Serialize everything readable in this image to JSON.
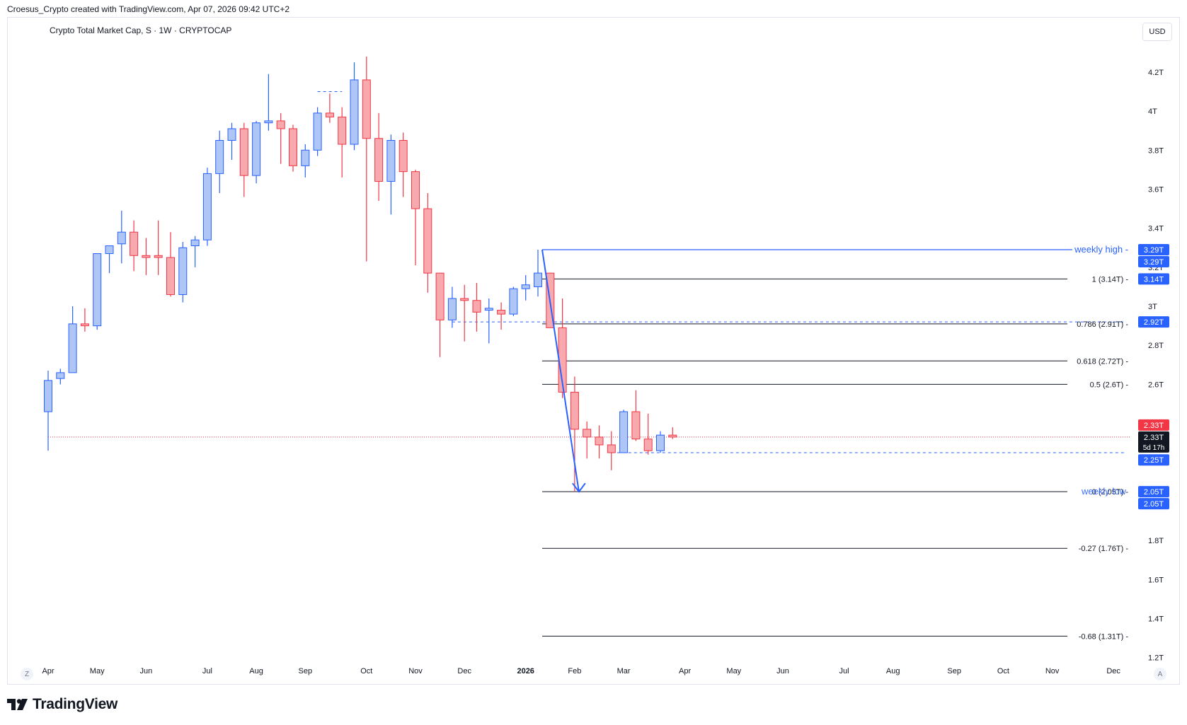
{
  "header": {
    "caption": "Croesus_Crypto created with TradingView.com, Apr 07, 2026 09:42 UTC+2",
    "symbol_title": "Crypto Total Market Cap, S · 1W · CRYPTOCAP",
    "currency": "USD"
  },
  "footer": {
    "logo_text": "TradingView",
    "zoom_label": "Z",
    "scale_label": "A"
  },
  "colors": {
    "up": "#aec6f5",
    "up_border": "#2962ff",
    "down": "#f7a9ad",
    "down_border": "#f23645",
    "fib_line": "#131722",
    "accent": "#2962ff",
    "last_price": "#f23645"
  },
  "chart_data": {
    "type": "candlestick",
    "timeframe": "1W",
    "ylim": [
      1.17,
      4.37
    ],
    "yticks": [
      {
        "value": 4.2,
        "label": "4.2T"
      },
      {
        "value": 4.0,
        "label": "4T"
      },
      {
        "value": 3.8,
        "label": "3.8T"
      },
      {
        "value": 3.6,
        "label": "3.6T"
      },
      {
        "value": 3.4,
        "label": "3.4T"
      },
      {
        "value": 3.2,
        "label": "3.2T"
      },
      {
        "value": 3.0,
        "label": "3T"
      },
      {
        "value": 2.8,
        "label": "2.8T"
      },
      {
        "value": 2.6,
        "label": "2.6T"
      },
      {
        "value": 1.8,
        "label": "1.8T"
      },
      {
        "value": 1.6,
        "label": "1.6T"
      },
      {
        "value": 1.4,
        "label": "1.4T"
      },
      {
        "value": 1.2,
        "label": "1.2T"
      }
    ],
    "xticks": [
      {
        "index": 0,
        "label": "Apr"
      },
      {
        "index": 4,
        "label": "May"
      },
      {
        "index": 8,
        "label": "Jun"
      },
      {
        "index": 13,
        "label": "Jul"
      },
      {
        "index": 17,
        "label": "Aug"
      },
      {
        "index": 21,
        "label": "Sep"
      },
      {
        "index": 26,
        "label": "Oct"
      },
      {
        "index": 30,
        "label": "Nov"
      },
      {
        "index": 34,
        "label": "Dec"
      },
      {
        "index": 39,
        "label": "2026",
        "bold": true
      },
      {
        "index": 43,
        "label": "Feb"
      },
      {
        "index": 47,
        "label": "Mar"
      },
      {
        "index": 52,
        "label": "Apr"
      },
      {
        "index": 56,
        "label": "May"
      },
      {
        "index": 60,
        "label": "Jun"
      },
      {
        "index": 65,
        "label": "Jul"
      },
      {
        "index": 69,
        "label": "Aug"
      },
      {
        "index": 74,
        "label": "Sep"
      },
      {
        "index": 78,
        "label": "Oct"
      },
      {
        "index": 82,
        "label": "Nov"
      },
      {
        "index": 87,
        "label": "Dec"
      }
    ],
    "candles": [
      {
        "o": 2.46,
        "h": 2.67,
        "l": 2.26,
        "c": 2.62
      },
      {
        "o": 2.63,
        "h": 2.68,
        "l": 2.6,
        "c": 2.66
      },
      {
        "o": 2.66,
        "h": 3.0,
        "l": 2.66,
        "c": 2.91
      },
      {
        "o": 2.91,
        "h": 2.99,
        "l": 2.87,
        "c": 2.9
      },
      {
        "o": 2.9,
        "h": 3.27,
        "l": 2.88,
        "c": 3.27
      },
      {
        "o": 3.27,
        "h": 3.3,
        "l": 3.17,
        "c": 3.31
      },
      {
        "o": 3.32,
        "h": 3.49,
        "l": 3.22,
        "c": 3.38
      },
      {
        "o": 3.38,
        "h": 3.44,
        "l": 3.18,
        "c": 3.26
      },
      {
        "o": 3.26,
        "h": 3.35,
        "l": 3.16,
        "c": 3.25
      },
      {
        "o": 3.26,
        "h": 3.44,
        "l": 3.16,
        "c": 3.25
      },
      {
        "o": 3.25,
        "h": 3.38,
        "l": 3.05,
        "c": 3.06
      },
      {
        "o": 3.06,
        "h": 3.33,
        "l": 3.02,
        "c": 3.3
      },
      {
        "o": 3.31,
        "h": 3.36,
        "l": 3.2,
        "c": 3.34
      },
      {
        "o": 3.34,
        "h": 3.71,
        "l": 3.31,
        "c": 3.68
      },
      {
        "o": 3.68,
        "h": 3.9,
        "l": 3.58,
        "c": 3.85
      },
      {
        "o": 3.85,
        "h": 3.94,
        "l": 3.75,
        "c": 3.91
      },
      {
        "o": 3.91,
        "h": 3.94,
        "l": 3.56,
        "c": 3.67
      },
      {
        "o": 3.67,
        "h": 3.95,
        "l": 3.63,
        "c": 3.94
      },
      {
        "o": 3.94,
        "h": 4.19,
        "l": 3.9,
        "c": 3.95
      },
      {
        "o": 3.95,
        "h": 3.99,
        "l": 3.73,
        "c": 3.91
      },
      {
        "o": 3.91,
        "h": 3.93,
        "l": 3.69,
        "c": 3.72
      },
      {
        "o": 3.72,
        "h": 3.83,
        "l": 3.66,
        "c": 3.8
      },
      {
        "o": 3.8,
        "h": 4.02,
        "l": 3.77,
        "c": 3.99
      },
      {
        "o": 3.99,
        "h": 4.09,
        "l": 3.94,
        "c": 3.97
      },
      {
        "o": 3.97,
        "h": 4.02,
        "l": 3.66,
        "c": 3.83
      },
      {
        "o": 3.83,
        "h": 4.25,
        "l": 3.8,
        "c": 4.16
      },
      {
        "o": 4.16,
        "h": 4.28,
        "l": 3.23,
        "c": 3.86
      },
      {
        "o": 3.86,
        "h": 3.99,
        "l": 3.54,
        "c": 3.64
      },
      {
        "o": 3.64,
        "h": 3.88,
        "l": 3.47,
        "c": 3.85
      },
      {
        "o": 3.85,
        "h": 3.89,
        "l": 3.56,
        "c": 3.69
      },
      {
        "o": 3.69,
        "h": 3.7,
        "l": 3.21,
        "c": 3.5
      },
      {
        "o": 3.5,
        "h": 3.58,
        "l": 3.07,
        "c": 3.17
      },
      {
        "o": 3.17,
        "h": 3.17,
        "l": 2.74,
        "c": 2.93
      },
      {
        "o": 2.93,
        "h": 3.1,
        "l": 2.89,
        "c": 3.04
      },
      {
        "o": 3.04,
        "h": 3.11,
        "l": 2.82,
        "c": 3.03
      },
      {
        "o": 3.03,
        "h": 3.12,
        "l": 2.87,
        "c": 2.97
      },
      {
        "o": 2.98,
        "h": 3.04,
        "l": 2.81,
        "c": 2.99
      },
      {
        "o": 2.98,
        "h": 3.02,
        "l": 2.88,
        "c": 2.96
      },
      {
        "o": 2.96,
        "h": 3.1,
        "l": 2.95,
        "c": 3.09
      },
      {
        "o": 3.09,
        "h": 3.16,
        "l": 3.03,
        "c": 3.11
      },
      {
        "o": 3.1,
        "h": 3.29,
        "l": 3.05,
        "c": 3.17
      },
      {
        "o": 3.17,
        "h": 3.15,
        "l": 2.92,
        "c": 2.89
      },
      {
        "o": 2.89,
        "h": 3.04,
        "l": 2.53,
        "c": 2.56
      },
      {
        "o": 2.56,
        "h": 2.64,
        "l": 2.05,
        "c": 2.37
      },
      {
        "o": 2.37,
        "h": 2.41,
        "l": 2.22,
        "c": 2.33
      },
      {
        "o": 2.33,
        "h": 2.39,
        "l": 2.22,
        "c": 2.29
      },
      {
        "o": 2.29,
        "h": 2.36,
        "l": 2.16,
        "c": 2.25
      },
      {
        "o": 2.25,
        "h": 2.47,
        "l": 2.25,
        "c": 2.46
      },
      {
        "o": 2.46,
        "h": 2.57,
        "l": 2.31,
        "c": 2.32
      },
      {
        "o": 2.32,
        "h": 2.45,
        "l": 2.24,
        "c": 2.26
      },
      {
        "o": 2.26,
        "h": 2.36,
        "l": 2.25,
        "c": 2.34
      },
      {
        "o": 2.34,
        "h": 2.38,
        "l": 2.32,
        "c": 2.33
      }
    ],
    "fib_levels": [
      {
        "ratio": "1",
        "value": 3.14,
        "label": "1 (3.14T)"
      },
      {
        "ratio": "0.786",
        "value": 2.91,
        "label": "0.786 (2.91T)"
      },
      {
        "ratio": "0.618",
        "value": 2.72,
        "label": "0.618 (2.72T)"
      },
      {
        "ratio": "0.5",
        "value": 2.6,
        "label": "0.5 (2.6T)"
      },
      {
        "ratio": "0",
        "value": 2.05,
        "label": "0 (2.05T)"
      },
      {
        "ratio": "-0.27",
        "value": 1.76,
        "label": "-0.27 (1.76T)"
      },
      {
        "ratio": "-0.68",
        "value": 1.31,
        "label": "-0.68 (1.31T)"
      }
    ],
    "fib_start_index": 40,
    "fib_label_suffix": " -",
    "weekly_high": {
      "value": 3.29,
      "label": "weekly high",
      "start_index": 40
    },
    "weekly_low": {
      "value": 2.05,
      "label": "weekly low",
      "start_index": 43
    },
    "arrow": {
      "from_index": 40,
      "from_value": 3.29,
      "to_index": 43,
      "to_value": 2.05
    },
    "dashed_levels": [
      {
        "value": 2.92,
        "from_index": 33,
        "to_index": 88
      },
      {
        "value": 2.25,
        "from_index": 46,
        "to_index": 88
      },
      {
        "value": 4.1,
        "from_index": 22,
        "to_index": 24
      }
    ],
    "last_price_line": 2.33,
    "price_tags": [
      {
        "value": 3.29,
        "label": "3.29T",
        "bg": "#2962ff",
        "fg": "#ffffff"
      },
      {
        "value": 3.29,
        "label": "3.29T",
        "bg": "#2962ff",
        "fg": "#ffffff",
        "offset": 1
      },
      {
        "value": 3.14,
        "label": "3.14T",
        "bg": "#2962ff",
        "fg": "#ffffff"
      },
      {
        "value": 2.92,
        "label": "2.92T",
        "bg": "#2962ff",
        "fg": "#ffffff"
      },
      {
        "value": 2.33,
        "label": "2.33T",
        "bg": "#f23645",
        "fg": "#ffffff",
        "offset": -1
      },
      {
        "value": 2.33,
        "label": "2.33T",
        "sub": "5d 17h",
        "bg": "#131722",
        "fg": "#ffffff"
      },
      {
        "value": 2.25,
        "label": "2.25T",
        "bg": "#2962ff",
        "fg": "#ffffff",
        "offset": 0.6
      },
      {
        "value": 2.05,
        "label": "2.05T",
        "bg": "#2962ff",
        "fg": "#ffffff"
      },
      {
        "value": 2.05,
        "label": "2.05T",
        "bg": "#2962ff",
        "fg": "#ffffff",
        "offset": 1
      }
    ]
  }
}
